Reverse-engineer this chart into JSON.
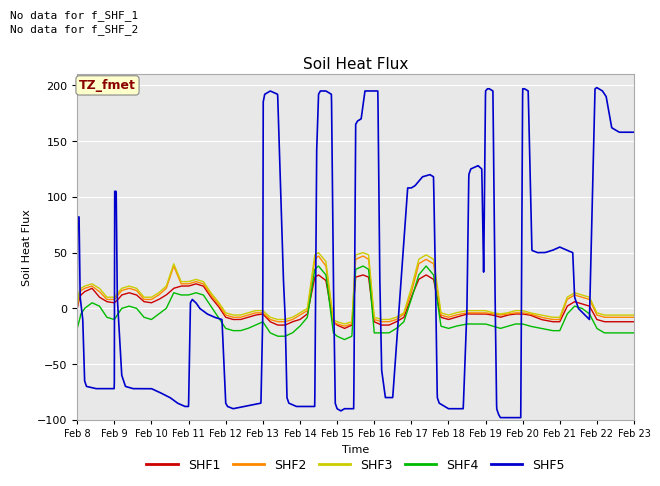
{
  "title": "Soil Heat Flux",
  "ylabel": "Soil Heat Flux",
  "xlabel": "Time",
  "ylim": [
    -100,
    210
  ],
  "yticks": [
    -100,
    -50,
    0,
    50,
    100,
    150,
    200
  ],
  "no_data_text": [
    "No data for f_SHF_1",
    "No data for f_SHF_2"
  ],
  "tz_label": "TZ_fmet",
  "legend_entries": [
    "SHF1",
    "SHF2",
    "SHF3",
    "SHF4",
    "SHF5"
  ],
  "line_colors": {
    "SHF1": "#cc0000",
    "SHF2": "#ff8800",
    "SHF3": "#cccc00",
    "SHF4": "#00bb00",
    "SHF5": "#0000cc"
  },
  "background_color": "#e8e8e8",
  "x_start": 8,
  "x_end": 23,
  "x_ticks": [
    8,
    9,
    10,
    11,
    12,
    13,
    14,
    15,
    16,
    17,
    18,
    19,
    20,
    21,
    22,
    23
  ],
  "x_tick_labels": [
    "Feb 8",
    "Feb 9",
    "Feb 10",
    "Feb 11",
    "Feb 12",
    "Feb 13",
    "Feb 14",
    "Feb 15",
    "Feb 16",
    "Feb 17",
    "Feb 18",
    "Feb 19",
    "Feb 20",
    "Feb 21",
    "Feb 22",
    "Feb 23"
  ]
}
